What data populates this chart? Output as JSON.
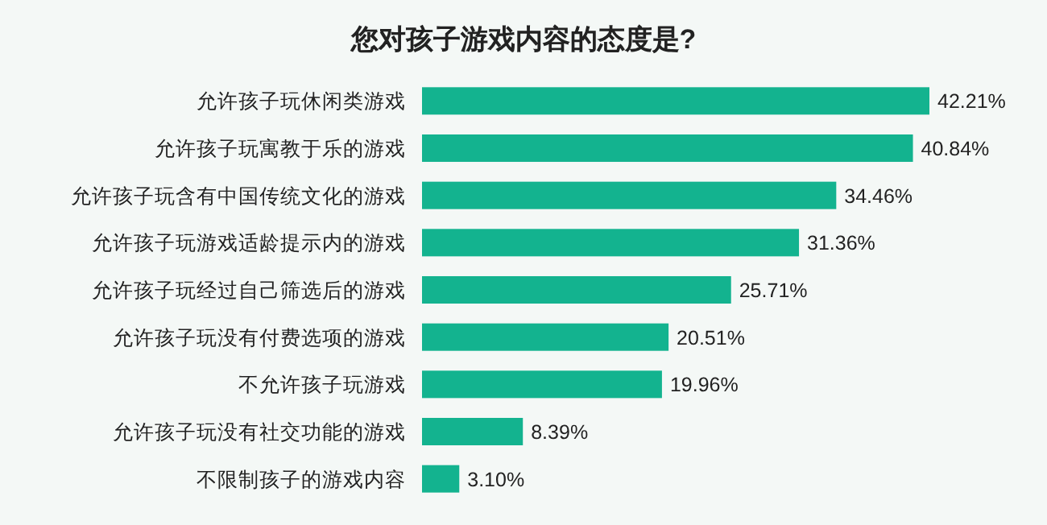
{
  "chart_data": {
    "type": "bar",
    "orientation": "horizontal",
    "title": "您对孩子游戏内容的态度是?",
    "categories": [
      "允许孩子玩休闲类游戏",
      "允许孩子玩寓教于乐的游戏",
      "允许孩子玩含有中国传统文化的游戏",
      "允许孩子玩游戏适龄提示内的游戏",
      "允许孩子玩经过自己筛选后的游戏",
      "允许孩子玩没有付费选项的游戏",
      "不允许孩子玩游戏",
      "允许孩子玩没有社交功能的游戏",
      "不限制孩子的游戏内容"
    ],
    "values": [
      42.21,
      40.84,
      34.46,
      31.36,
      25.71,
      20.51,
      19.96,
      8.39,
      3.1
    ],
    "value_labels": [
      "42.21%",
      "40.84%",
      "34.46%",
      "31.36%",
      "25.71%",
      "20.51%",
      "19.96%",
      "8.39%",
      "3.10%"
    ],
    "color": "#13b38f",
    "xlim": [
      0,
      42.21
    ],
    "tick_labels": "y"
  }
}
